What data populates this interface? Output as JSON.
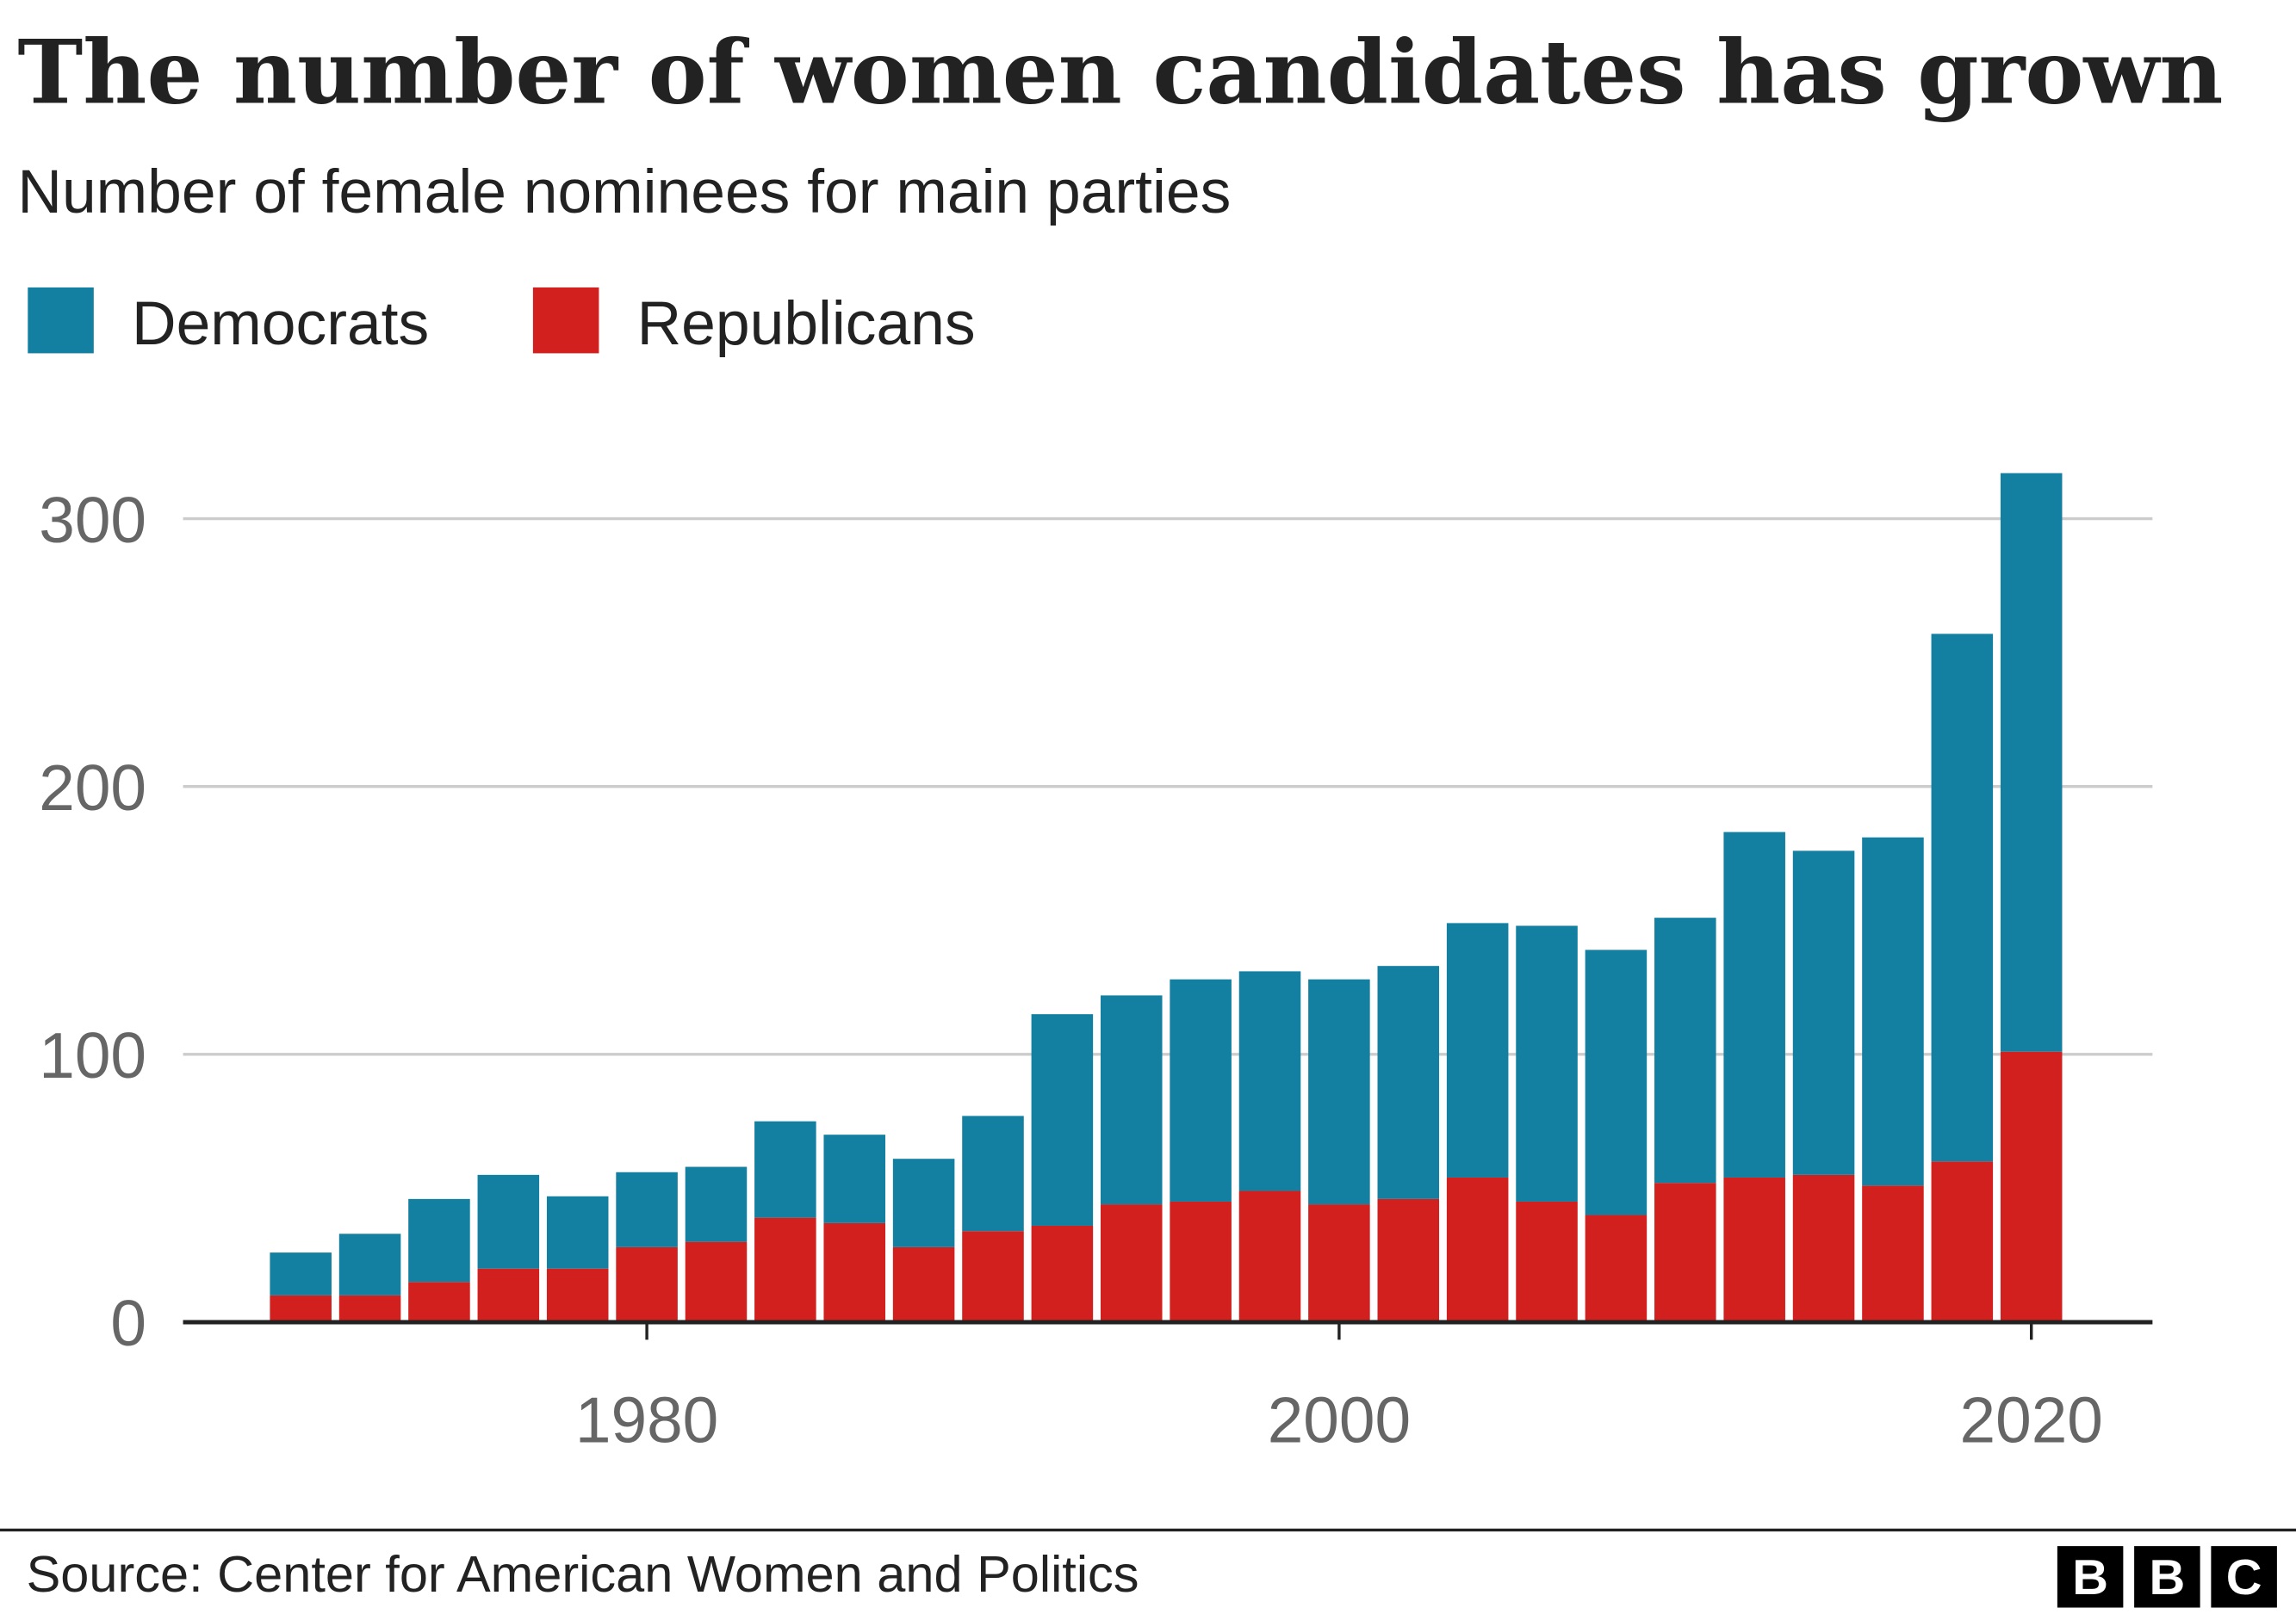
{
  "chart_data": {
    "type": "stacked-bar",
    "title": "The number of women candidates has grown",
    "subtitle": "Number of female nominees for main parties",
    "source": "Source: Center for American Women and Politics",
    "logo": [
      "B",
      "B",
      "C"
    ],
    "x": [
      1970,
      1972,
      1974,
      1976,
      1978,
      1980,
      1982,
      1984,
      1986,
      1988,
      1990,
      1992,
      1994,
      1996,
      1998,
      2000,
      2002,
      2004,
      2006,
      2008,
      2010,
      2012,
      2014,
      2016,
      2018,
      2020
    ],
    "series": [
      {
        "name": "Democrats",
        "color": "#1380A1",
        "values": [
          16,
          23,
          31,
          35,
          27,
          28,
          28,
          36,
          33,
          33,
          43,
          79,
          78,
          83,
          82,
          84,
          87,
          95,
          103,
          99,
          99,
          129,
          121,
          130,
          197,
          216
        ]
      },
      {
        "name": "Republicans",
        "color": "#D1201D",
        "values": [
          10,
          10,
          15,
          20,
          20,
          28,
          30,
          39,
          37,
          28,
          34,
          36,
          44,
          45,
          49,
          44,
          46,
          54,
          45,
          40,
          52,
          54,
          55,
          51,
          60,
          101
        ]
      }
    ],
    "xlim": [
      1966.6,
      2023.5
    ],
    "xticks": [
      1980,
      2000,
      2020
    ],
    "ylim": [
      0,
      320
    ],
    "yticks": [
      0,
      100,
      200,
      300
    ],
    "grid": true
  }
}
